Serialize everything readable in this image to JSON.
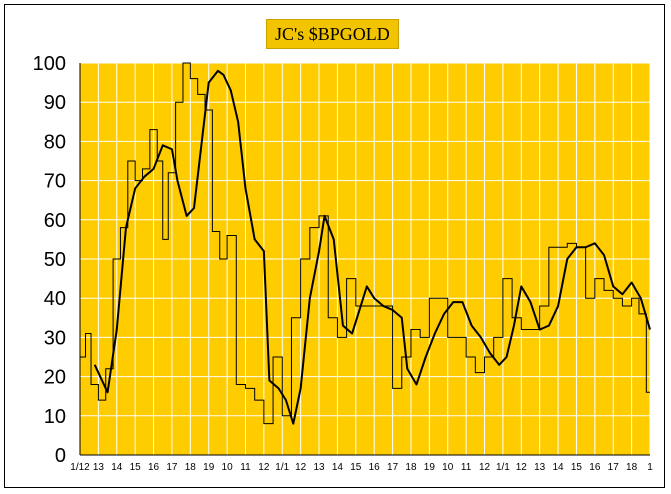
{
  "chart_data": {
    "type": "line",
    "title": "JC's $BPGOLD",
    "xlabel": "",
    "ylabel": "",
    "ylim": [
      0,
      100
    ],
    "yticks": [
      0,
      10,
      20,
      30,
      40,
      50,
      60,
      70,
      80,
      90,
      100
    ],
    "xtick_labels": [
      "1/12",
      "13",
      "14",
      "15",
      "16",
      "17",
      "18",
      "19",
      "10",
      "11",
      "12",
      "1/1",
      "12",
      "13",
      "14",
      "15",
      "16",
      "17",
      "18",
      "19",
      "10",
      "11",
      "12",
      "1/1",
      "12",
      "13",
      "14",
      "15",
      "16",
      "17",
      "18",
      "1"
    ],
    "grid": true,
    "legend": "none",
    "colors": {
      "plot_background": "#ffcc00",
      "grid": "#ffffff",
      "title_box": "#f2c400",
      "series_raw": "#000000",
      "series_smoothed": "#000000"
    },
    "series": [
      {
        "style": "step",
        "x": [
          0,
          0.3,
          0.6,
          1,
          1.4,
          1.8,
          2.2,
          2.6,
          3,
          3.4,
          3.8,
          4.2,
          4.5,
          4.8,
          5.2,
          5.6,
          6,
          6.4,
          6.8,
          7.2,
          7.6,
          8,
          8.5,
          9,
          9.5,
          10,
          10.5,
          11,
          11.5,
          12,
          12.5,
          13,
          13.5,
          14,
          14.5,
          15,
          15.5,
          16,
          16.5,
          17,
          17.5,
          18,
          18.5,
          19,
          19.5,
          20,
          20.5,
          21,
          21.5,
          22,
          22.5,
          23,
          23.5,
          24,
          24.5,
          25,
          25.5,
          26,
          26.5,
          27,
          27.5,
          28,
          28.5,
          29,
          29.5,
          30,
          30.4,
          30.8,
          31
        ],
        "y": [
          25,
          31,
          18,
          14,
          22,
          50,
          58,
          75,
          70,
          73,
          83,
          75,
          55,
          72,
          90,
          100,
          96,
          92,
          88,
          57,
          50,
          56,
          18,
          17,
          14,
          8,
          25,
          10,
          35,
          50,
          58,
          61,
          35,
          30,
          45,
          38,
          38,
          38,
          38,
          17,
          25,
          32,
          30,
          40,
          40,
          30,
          30,
          25,
          21,
          25,
          30,
          45,
          35,
          32,
          32,
          38,
          53,
          53,
          54,
          53,
          40,
          45,
          42,
          40,
          38,
          40,
          36,
          16,
          16
        ]
      },
      {
        "style": "smooth",
        "x": [
          0.8,
          1.1,
          1.5,
          2,
          2.5,
          3,
          3.5,
          4,
          4.5,
          5,
          5.3,
          5.8,
          6.2,
          6.5,
          7,
          7.5,
          7.8,
          8.2,
          8.6,
          9,
          9.5,
          10,
          10.3,
          10.8,
          11.2,
          11.6,
          12,
          12.5,
          13,
          13.3,
          13.8,
          14.3,
          14.8,
          15.2,
          15.6,
          16,
          16.5,
          17,
          17.5,
          17.8,
          18.3,
          18.8,
          19.3,
          19.8,
          20.3,
          20.8,
          21.3,
          21.8,
          22.3,
          22.8,
          23.2,
          23.6,
          24,
          24.5,
          25,
          25.5,
          26,
          26.5,
          27,
          27.5,
          28,
          28.5,
          29,
          29.5,
          30,
          30.5,
          31
        ],
        "y": [
          23,
          20,
          16,
          32,
          58,
          68,
          71,
          73,
          79,
          78,
          70,
          61,
          63,
          75,
          95,
          98,
          97,
          93,
          85,
          68,
          55,
          52,
          19,
          17,
          14,
          8,
          17,
          40,
          52,
          61,
          55,
          33,
          31,
          37,
          43,
          40,
          38,
          37,
          35,
          22,
          18,
          25,
          31,
          36,
          39,
          39,
          33,
          30,
          26,
          23,
          25,
          33,
          43,
          39,
          32,
          33,
          38,
          50,
          53,
          53,
          54,
          51,
          43,
          41,
          44,
          40,
          32
        ]
      }
    ]
  }
}
